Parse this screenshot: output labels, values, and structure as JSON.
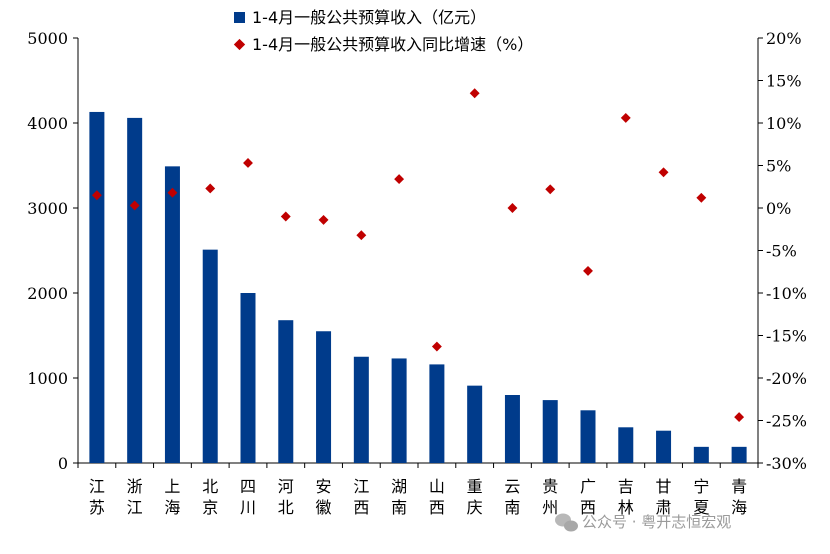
{
  "chart_data": {
    "type": "bar",
    "categories": [
      "江苏",
      "浙江",
      "上海",
      "北京",
      "四川",
      "河北",
      "安徽",
      "江西",
      "湖南",
      "山西",
      "重庆",
      "云南",
      "贵州",
      "广西",
      "吉林",
      "甘肃",
      "宁夏",
      "青海"
    ],
    "series": [
      {
        "name": "1-4月一般公共预算收入（亿元）",
        "type": "bar",
        "axis": "left",
        "color": "#003b8b",
        "values": [
          4130,
          4060,
          3490,
          2510,
          2000,
          1680,
          1550,
          1250,
          1230,
          1160,
          910,
          800,
          740,
          620,
          420,
          380,
          190,
          190
        ]
      },
      {
        "name": "1-4月一般公共预算收入同比增速（%）",
        "type": "scatter",
        "axis": "right",
        "color": "#c00000",
        "values": [
          1.5,
          0.3,
          1.8,
          2.3,
          5.3,
          -1.0,
          -1.4,
          -3.2,
          3.4,
          -16.3,
          13.5,
          0.0,
          2.2,
          -7.4,
          10.6,
          4.2,
          1.2,
          -24.6
        ]
      }
    ],
    "left_axis": {
      "ylim": [
        0,
        5000
      ],
      "ticks": [
        "0",
        "1000",
        "2000",
        "3000",
        "4000",
        "5000"
      ]
    },
    "right_axis": {
      "ylim": [
        -30,
        20
      ],
      "ticks": [
        "-30%",
        "-25%",
        "-20%",
        "-15%",
        "-10%",
        "-5%",
        "0%",
        "5%",
        "10%",
        "15%",
        "20%"
      ]
    },
    "legend": {
      "position": "top"
    },
    "grid": false
  },
  "watermark": {
    "text": "公众号 · 粤开志恒宏观",
    "icon": "wechat-icon"
  }
}
